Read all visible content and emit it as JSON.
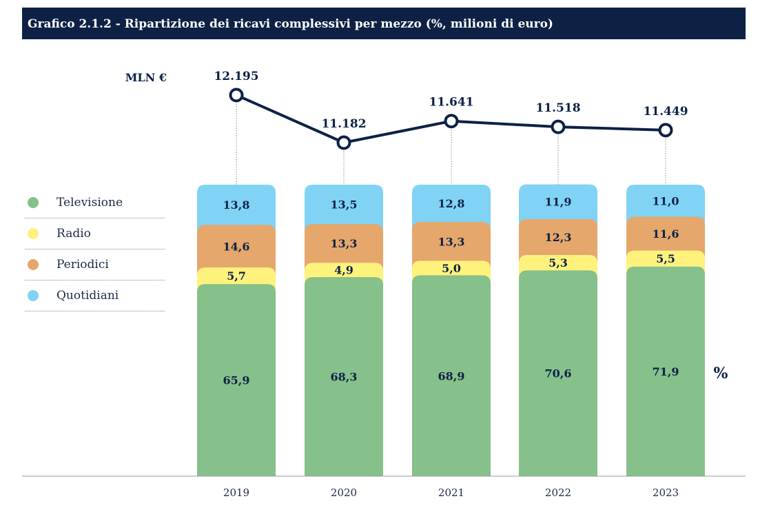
{
  "title": "Grafico 2.1.2 - Ripartizione dei ricavi complessivi per mezzo (%, milioni di euro)",
  "total_unit_label": "MLN €",
  "percent_unit_label": "%",
  "legend": [
    {
      "label": "Televisione",
      "color": "#86c08a"
    },
    {
      "label": "Radio",
      "color": "#fef27d"
    },
    {
      "label": "Periodici",
      "color": "#e5a76c"
    },
    {
      "label": "Quotidiani",
      "color": "#80d3f5"
    }
  ],
  "chart_data": {
    "type": "bar",
    "stacked": true,
    "categories": [
      "2019",
      "2020",
      "2021",
      "2022",
      "2023"
    ],
    "ylim": [
      0,
      100
    ],
    "series": [
      {
        "name": "Televisione",
        "color": "#86c08a",
        "values": [
          65.9,
          68.3,
          68.9,
          70.6,
          71.9
        ],
        "labels": [
          "65,9",
          "68,3",
          "68,9",
          "70,6",
          "71,9"
        ]
      },
      {
        "name": "Radio",
        "color": "#fef27d",
        "values": [
          5.7,
          4.9,
          5.0,
          5.3,
          5.5
        ],
        "labels": [
          "5,7",
          "4,9",
          "5,0",
          "5,3",
          "5,5"
        ]
      },
      {
        "name": "Periodici",
        "color": "#e5a76c",
        "values": [
          14.6,
          13.3,
          13.3,
          12.3,
          11.6
        ],
        "labels": [
          "14,6",
          "13,3",
          "13,3",
          "12,3",
          "11,6"
        ]
      },
      {
        "name": "Quotidiani",
        "color": "#80d3f5",
        "values": [
          13.8,
          13.5,
          12.8,
          11.9,
          11.0
        ],
        "labels": [
          "13,8",
          "13,5",
          "12,8",
          "11,9",
          "11,0"
        ]
      }
    ],
    "totals": {
      "type": "line",
      "values": [
        12195,
        11182,
        11641,
        11518,
        11449
      ],
      "labels": [
        "12.195",
        "11.182",
        "11.641",
        "11.518",
        "11.449"
      ],
      "color": "#0d2145"
    },
    "grid": false,
    "legend_position": "left"
  }
}
